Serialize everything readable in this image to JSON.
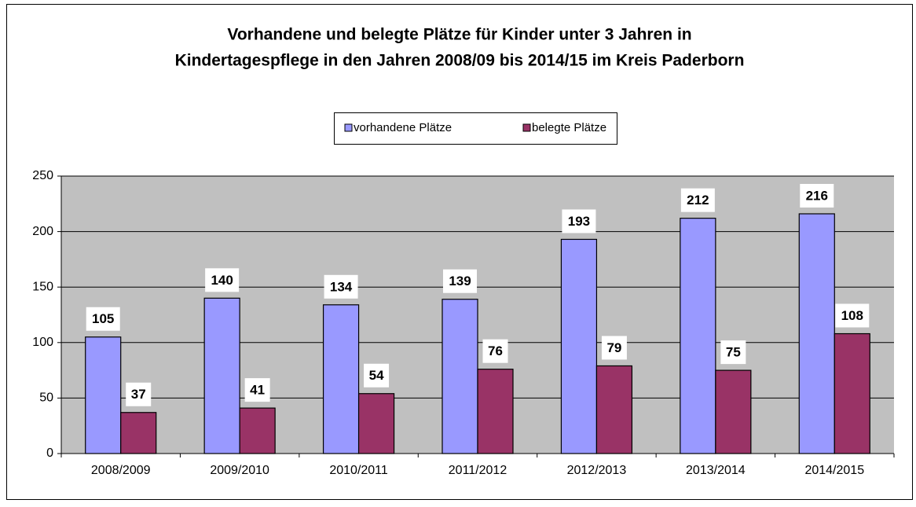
{
  "chart_data": {
    "type": "bar",
    "title": [
      "Vorhandene und belegte Plätze für Kinder unter 3 Jahren in",
      "Kindertagespflege in den Jahren 2008/09 bis 2014/15  im Kreis Paderborn"
    ],
    "categories": [
      "2008/2009",
      "2009/2010",
      "2010/2011",
      "2011/2012",
      "2012/2013",
      "2013/2014",
      "2014/2015"
    ],
    "series": [
      {
        "name": "vorhandene Plätze",
        "color": "#9999ff",
        "values": [
          105,
          140,
          134,
          139,
          193,
          212,
          216
        ]
      },
      {
        "name": "belegte Plätze",
        "color": "#993366",
        "values": [
          37,
          41,
          54,
          76,
          79,
          75,
          108
        ]
      }
    ],
    "ylim": [
      0,
      250
    ],
    "yticks": [
      0,
      50,
      100,
      150,
      200,
      250
    ],
    "grid": true,
    "legend": "top"
  }
}
